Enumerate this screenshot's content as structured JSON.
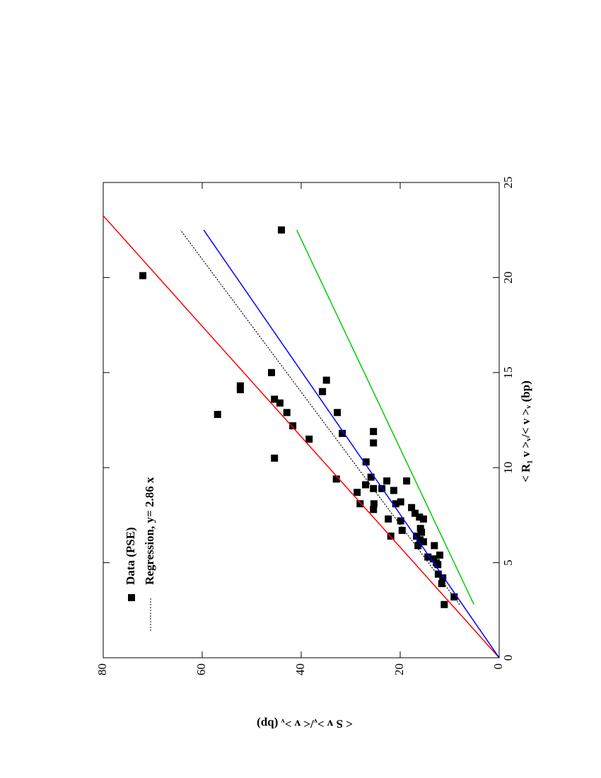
{
  "chart_data": {
    "type": "scatter",
    "xlabel": "< R₁ v >ᵥ/< v >ᵥ (bp)",
    "ylabel": "< S v >ᵥ/< v >ᵥ (bp)",
    "xlim": [
      0,
      25
    ],
    "ylim": [
      0,
      80
    ],
    "xticks": [
      0,
      5,
      10,
      15,
      20,
      25
    ],
    "yticks": [
      0,
      20,
      40,
      60,
      80
    ],
    "legend": "upper left",
    "series": [
      {
        "name": "Data (PSE)",
        "color": "#000000",
        "style": "markers",
        "x": [
          22.5,
          20.1,
          12.8,
          14.3,
          14.1,
          15.0,
          13.6,
          13.4,
          12.9,
          12.2,
          11.5,
          10.5,
          14.6,
          14.0,
          12.9,
          11.8,
          11.9,
          11.3,
          10.3,
          9.4,
          9.1,
          8.7,
          8.1,
          8.9,
          7.8,
          9.5,
          9.3,
          8.9,
          8.1,
          9.3,
          8.8,
          8.1,
          8.2,
          7.3,
          7.2,
          6.7,
          6.4,
          7.9,
          7.6,
          7.4,
          7.3,
          6.4,
          6.8,
          6.6,
          5.9,
          6.2,
          6.1,
          5.9,
          5.3,
          5.2,
          5.0,
          4.9,
          5.4,
          4.4,
          4.2,
          3.9,
          3.2,
          2.8
        ],
        "values": [
          44,
          72,
          56.9,
          52.3,
          52.3,
          46,
          45.4,
          44.3,
          42.9,
          41.7,
          38.4,
          45.4,
          34.9,
          35.7,
          32.7,
          31.7,
          25.4,
          25.4,
          26.9,
          32.9,
          27,
          28.7,
          28.1,
          25.4,
          25.4,
          25.9,
          22.7,
          23.7,
          25.3,
          18.7,
          21.3,
          20.9,
          19.9,
          22.4,
          19.9,
          19.6,
          21.9,
          17.7,
          17,
          16.1,
          15.3,
          16.7,
          15.9,
          15.7,
          16.4,
          16,
          15.3,
          13.1,
          14.4,
          13.3,
          12.7,
          12.4,
          12,
          12.3,
          11.4,
          11.6,
          9.1,
          11.1
        ]
      },
      {
        "name": "Regression, y= 2.86 x",
        "color": "#000000",
        "style": "dotted",
        "x": [
          2.8,
          22.5
        ],
        "values": [
          8.0,
          64.4
        ]
      },
      {
        "color": "#ff0000",
        "style": "solid",
        "x": [
          0,
          23.25
        ],
        "values": [
          0,
          80
        ]
      },
      {
        "color": "#0000ff",
        "style": "solid",
        "x": [
          0,
          22.5
        ],
        "values": [
          0,
          59.7
        ]
      },
      {
        "color": "#00cc00",
        "style": "solid",
        "x": [
          2.8,
          22.5
        ],
        "values": [
          5.1,
          40.9
        ]
      }
    ]
  }
}
